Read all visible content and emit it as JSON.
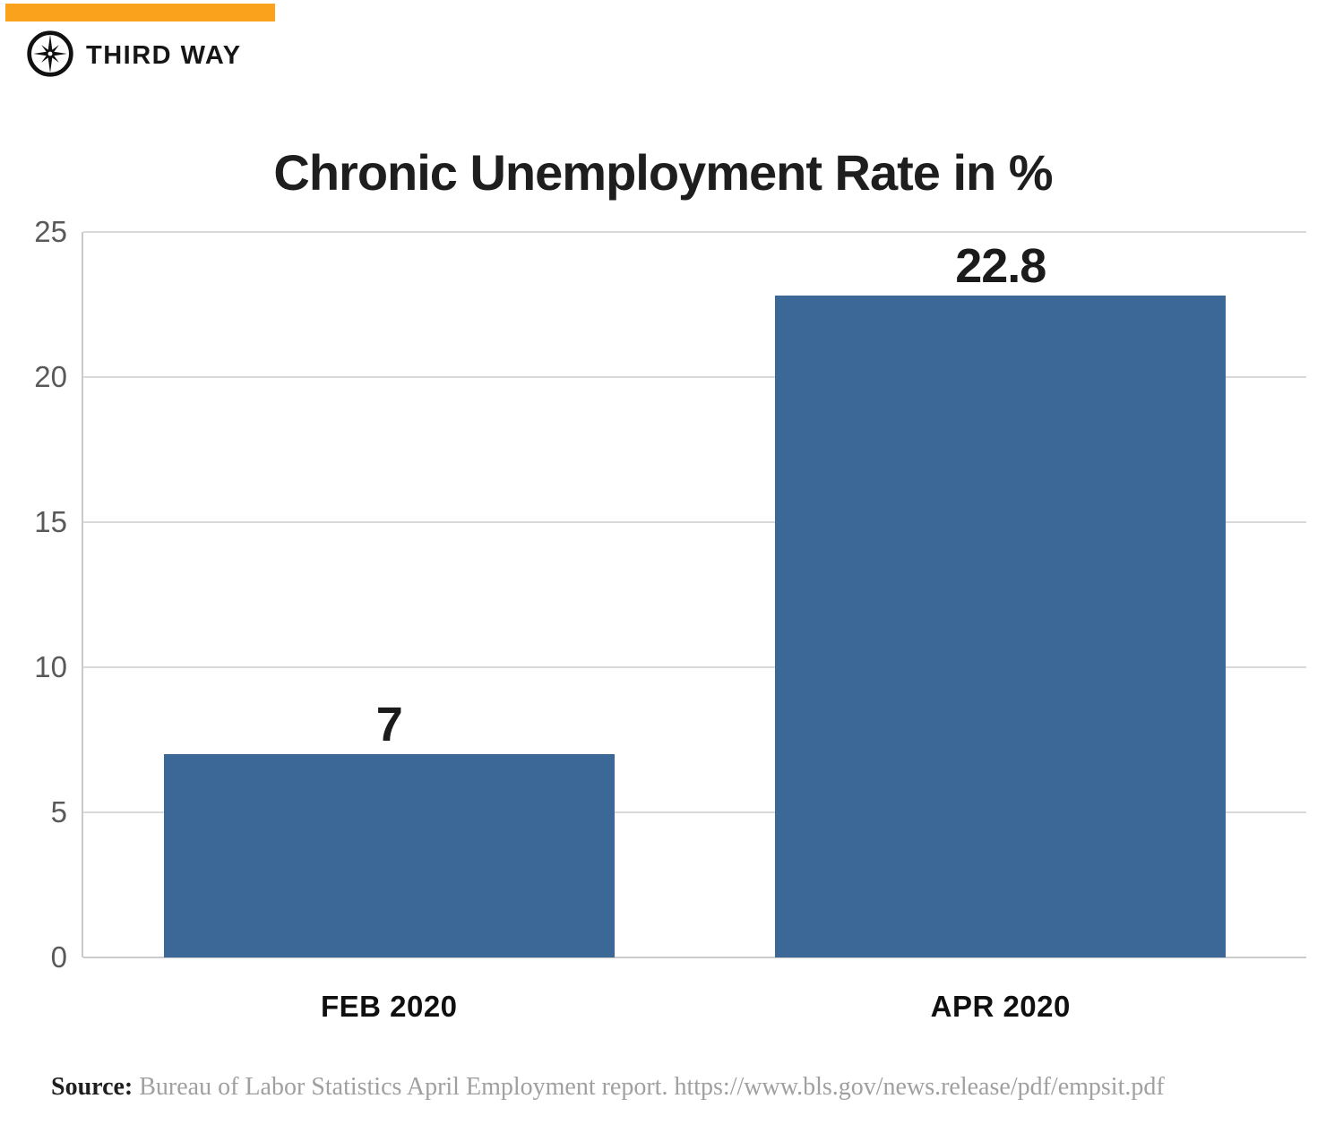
{
  "brand": {
    "logo_text": "THIRD WAY",
    "logo_icon": "compass-star-icon",
    "accent_color": "#FAA21C"
  },
  "chart_data": {
    "type": "bar",
    "title": "Chronic Unemployment Rate in %",
    "categories": [
      "FEB 2020",
      "APR 2020"
    ],
    "values": [
      7,
      22.8
    ],
    "value_labels": [
      "7",
      "22.8"
    ],
    "ylim": [
      0,
      25
    ],
    "yticks": [
      0,
      5,
      10,
      15,
      20,
      25
    ],
    "bar_color": "#3C6897",
    "gridline_color": "#D9D9D9",
    "grid": true,
    "legend": false,
    "xlabel": "",
    "ylabel": ""
  },
  "source": {
    "label": "Source:",
    "text": " Bureau of Labor Statistics April Employment report. https://www.bls.gov/news.release/pdf/empsit.pdf"
  }
}
